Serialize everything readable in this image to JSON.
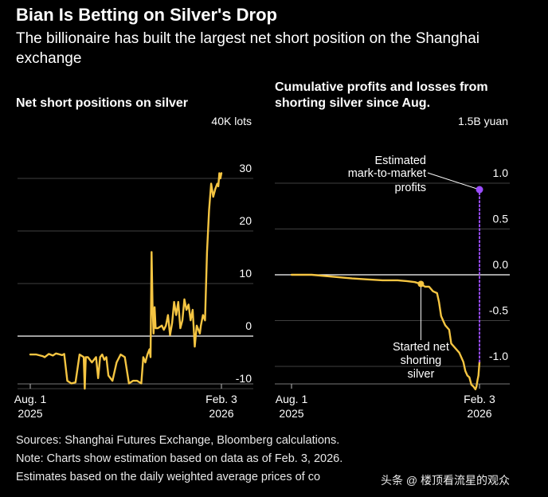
{
  "header": {
    "title": "Bian Is Betting on Silver's Drop",
    "subtitle": "The billionaire has built the largest net short position on the Shanghai exchange"
  },
  "chart_data": [
    {
      "type": "line",
      "title": "Net short positions on silver",
      "unit_label": "40K lots",
      "yticks": [
        -10,
        0,
        10,
        20,
        30
      ],
      "ylim": [
        -12,
        36
      ],
      "xlim": [
        0,
        186
      ],
      "x_tick_labels": [
        {
          "x": 0,
          "line1": "Aug. 1",
          "line2": "2025"
        },
        {
          "x": 186,
          "line1": "Feb. 3",
          "line2": "2026"
        }
      ],
      "series": [
        {
          "name": "Net short positions",
          "color": "#f5c542",
          "x": [
            0,
            6,
            12,
            14,
            18,
            22,
            25,
            27,
            29,
            31,
            33,
            36,
            40,
            44,
            48,
            52,
            53,
            54,
            56,
            60,
            64,
            66,
            68,
            70,
            72,
            74,
            76,
            80,
            84,
            88,
            92,
            96,
            100,
            104,
            108,
            110,
            112,
            114,
            116,
            117,
            118,
            119,
            120,
            121,
            122,
            124,
            128,
            130,
            132,
            134,
            136,
            138,
            140,
            142,
            144,
            146,
            148,
            150,
            152,
            154,
            156,
            158,
            160,
            162,
            164,
            165,
            166,
            168,
            170,
            172,
            174,
            176,
            178,
            180,
            182,
            183,
            184,
            185,
            186
          ],
          "y": [
            -3.5,
            -3.5,
            -3.8,
            -4,
            -3.4,
            -3.7,
            -3.3,
            -3.4,
            -3.5,
            -3.6,
            -3.4,
            -8.5,
            -9,
            -8.8,
            -3.5,
            -4,
            -10,
            -4,
            -4,
            -5,
            -4,
            -8,
            -4,
            -3.5,
            -4.5,
            -4,
            -7.5,
            -8.5,
            -5,
            -3.5,
            -4,
            -9,
            -8.5,
            -8.5,
            -9,
            -4,
            -5,
            -3.5,
            -2.5,
            -4,
            16,
            6,
            0.5,
            5.5,
            1.5,
            1.5,
            2,
            1.2,
            2,
            4,
            0.2,
            2.5,
            6.5,
            4,
            6.5,
            1.5,
            3,
            7,
            5,
            6,
            3,
            5,
            -2,
            2,
            1,
            0.5,
            2,
            4,
            3,
            16,
            24,
            29,
            26.5,
            28,
            29,
            28.5,
            31,
            30,
            31
          ]
        }
      ]
    },
    {
      "type": "line",
      "title": "Cumulative profits and losses from shorting silver since Aug.",
      "unit_label": "1.5B yuan",
      "yticks": [
        -1.0,
        -0.5,
        0.0,
        0.5,
        1.0
      ],
      "ytick_labels": [
        "-1.0",
        "-0.5",
        "0.0",
        "0.5",
        "1.0"
      ],
      "ylim": [
        -1.25,
        1.5
      ],
      "xlim": [
        0,
        186
      ],
      "x_tick_labels": [
        {
          "x": 0,
          "line1": "Aug. 1",
          "line2": "2025"
        },
        {
          "x": 186,
          "line1": "Feb. 3",
          "line2": "2026"
        }
      ],
      "series": [
        {
          "name": "Cumulative P&L",
          "color": "#f5c542",
          "x": [
            0,
            20,
            40,
            60,
            75,
            90,
            105,
            115,
            122,
            128,
            132,
            136,
            140,
            144,
            146,
            148,
            150,
            152,
            156,
            158,
            162,
            166,
            170,
            172,
            174,
            176,
            178,
            180,
            182,
            183,
            184,
            185,
            186
          ],
          "y": [
            0,
            0,
            -0.02,
            -0.04,
            -0.05,
            -0.06,
            -0.06,
            -0.07,
            -0.08,
            -0.1,
            -0.13,
            -0.13,
            -0.18,
            -0.2,
            -0.3,
            -0.45,
            -0.5,
            -0.55,
            -0.6,
            -0.75,
            -0.8,
            -0.85,
            -0.95,
            -1.05,
            -1.1,
            -1.12,
            -1.2,
            -1.22,
            -1.25,
            -1.22,
            -1.15,
            -1.1,
            -0.95
          ]
        },
        {
          "name": "Estimated mark-to-market profits",
          "color": "#9b4dff",
          "style": "dotted",
          "x": [
            186,
            186
          ],
          "y": [
            -0.95,
            0.93
          ]
        }
      ],
      "annotations": [
        {
          "text": [
            "Estimated",
            "mark-to-market",
            "profits"
          ],
          "x": 186,
          "y": 0.93,
          "marker_color": "#9b4dff"
        },
        {
          "text": [
            "Started net",
            "shorting",
            "silver"
          ],
          "x": 128,
          "y": -0.1,
          "marker_color": "#f5c542"
        }
      ]
    }
  ],
  "footer": {
    "sources": "Sources: Shanghai Futures Exchange, Bloomberg calculations.",
    "note": "Note: Charts show estimation based on data as of Feb. 3, 2026.",
    "estimates": "Estimates based on the daily weighted average prices of co",
    "watermark": "头条 @ 楼顶看流星的观众"
  }
}
